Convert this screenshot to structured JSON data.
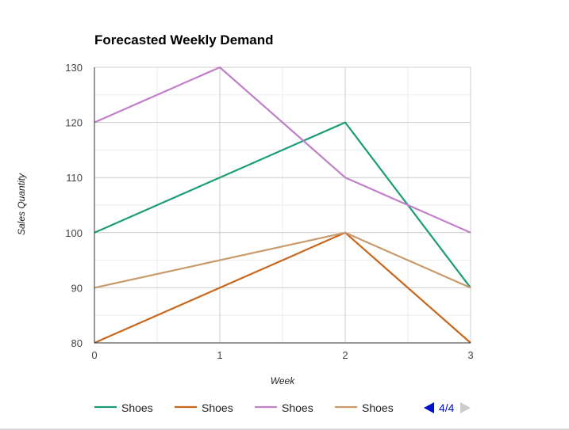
{
  "chart_data": {
    "type": "line",
    "title": "Forecasted Weekly Demand",
    "xlabel": "Week",
    "ylabel": "Sales Quantity",
    "x": [
      0,
      1,
      2,
      3
    ],
    "xticks": [
      "0",
      "1",
      "2",
      "3"
    ],
    "ylim": [
      80,
      130
    ],
    "yticks": [
      "80",
      "90",
      "100",
      "110",
      "120",
      "130"
    ],
    "grid": true,
    "legend_position": "bottom",
    "series": [
      {
        "name": "Shoes",
        "color": "#1a9c78",
        "values": [
          100,
          110,
          120,
          90
        ]
      },
      {
        "name": "Shoes",
        "color": "#c8661a",
        "values": [
          80,
          90,
          100,
          80
        ]
      },
      {
        "name": "Shoes",
        "color": "#c07fc8",
        "values": [
          120,
          130,
          110,
          100
        ]
      },
      {
        "name": "Shoes",
        "color": "#c8996a",
        "values": [
          90,
          95,
          100,
          90
        ]
      }
    ],
    "pager": {
      "label": "4/4",
      "prev_color": "#0011cc",
      "next_color": "#cccccc"
    }
  }
}
